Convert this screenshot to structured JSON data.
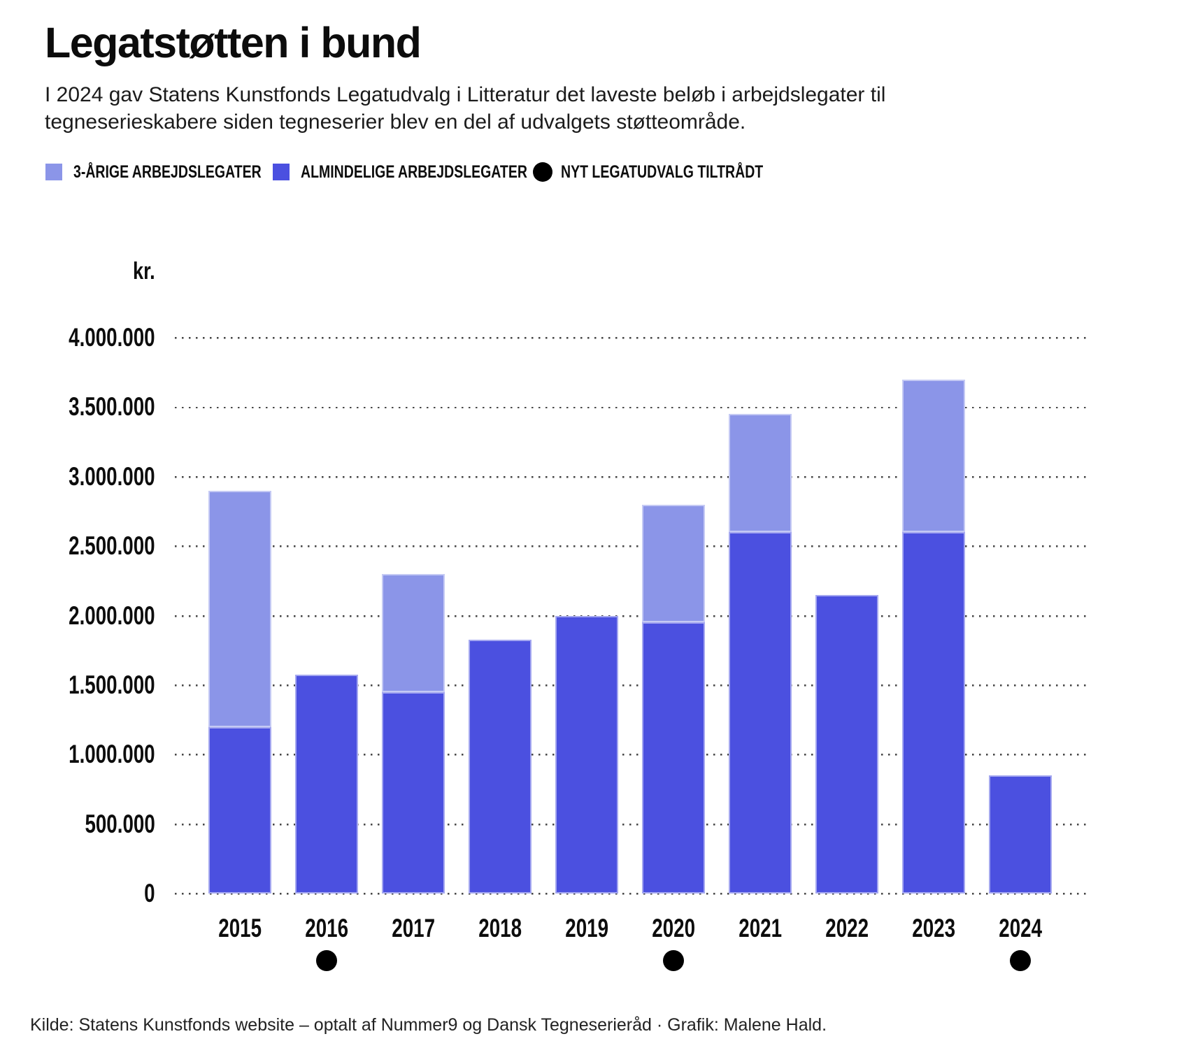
{
  "header": {
    "title": "Legatstøtten i bund",
    "subtitle": "I 2024 gav Statens Kunstfonds Legatudvalg i Litteratur det laveste beløb i arbejdslegater til tegneserieskabere siden tegneserier blev en del af udvalgets støtteområde."
  },
  "legend": {
    "items": [
      {
        "icon": "light-swatch",
        "color": "#8b95e8",
        "label": "3-ÅRIGE ARBEJDSLEGATER"
      },
      {
        "icon": "dark-swatch",
        "color": "#4b50e0",
        "label": "ALMINDELIGE ARBEJDSLEGATER"
      },
      {
        "icon": "black-dot",
        "color": "#000000",
        "label": "NYT LEGATUDVALG TILTRÅDT"
      }
    ]
  },
  "chart_data": {
    "type": "bar",
    "stacked": true,
    "unit_label": "kr.",
    "categories": [
      "2015",
      "2016",
      "2017",
      "2018",
      "2019",
      "2020",
      "2021",
      "2022",
      "2023",
      "2024"
    ],
    "series": [
      {
        "name": "3-ÅRIGE ARBEJDSLEGATER",
        "color": "#8b95e8",
        "stack": "top",
        "values": [
          1700000,
          0,
          850000,
          0,
          0,
          850000,
          850000,
          0,
          1100000,
          0
        ]
      },
      {
        "name": "ALMINDELIGE ARBEJDSLEGATER",
        "color": "#4b50e0",
        "stack": "bottom",
        "values": [
          1200000,
          1575000,
          1450000,
          1825000,
          2000000,
          1950000,
          2600000,
          2150000,
          2600000,
          850000
        ]
      }
    ],
    "totals": [
      2900000,
      1575000,
      2300000,
      1825000,
      2000000,
      2800000,
      3450000,
      2150000,
      3700000,
      850000
    ],
    "event_marker_label": "NYT LEGATUDVALG TILTRÅDT",
    "event_marker_years": [
      "2016",
      "2020",
      "2024"
    ],
    "y_axis": {
      "min": 0,
      "max": 4000000,
      "tick_step": 500000,
      "tick_labels": [
        "0",
        "500.000",
        "1.000.000",
        "1.500.000",
        "2.000.000",
        "2.500.000",
        "3.000.000",
        "3.500.000",
        "4.000.000"
      ],
      "grid": "dotted"
    }
  },
  "footer": {
    "source": "Kilde: Statens Kunstfonds website – optalt af Nummer9 og Dansk Tegneserieråd · Grafik: Malene Hald."
  }
}
